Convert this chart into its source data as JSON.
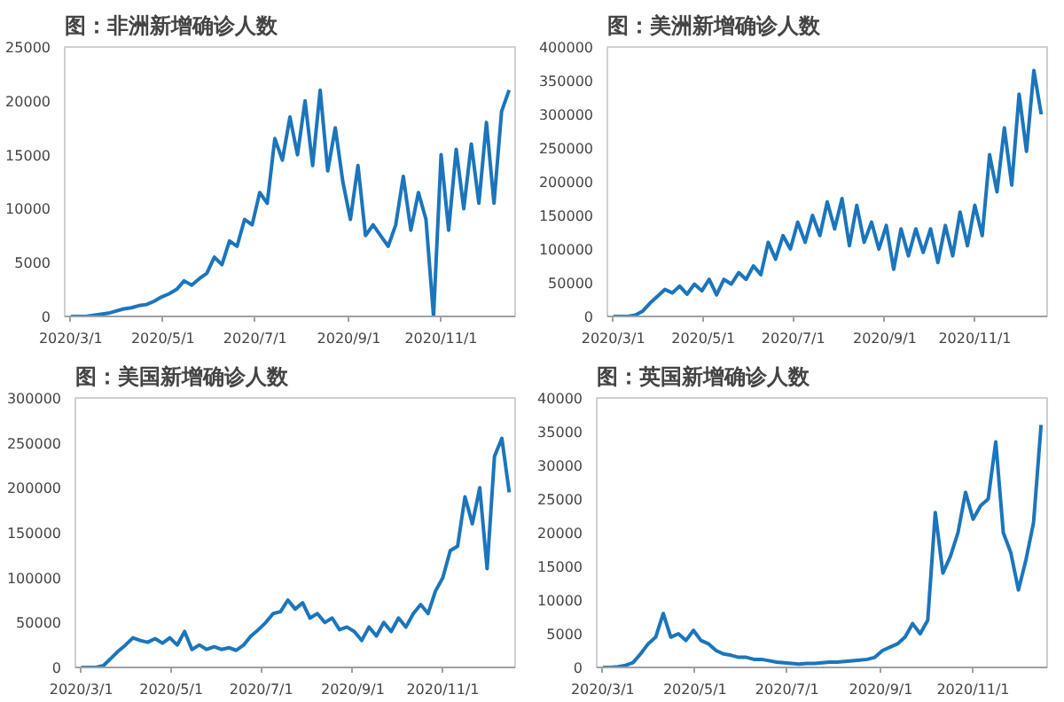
{
  "chart_data": [
    {
      "type": "line",
      "title": "图：非洲新增确诊人数",
      "grid": false,
      "xlim": [
        "2020-02-26",
        "2020-12-20"
      ],
      "xticks": [
        {
          "value": "2020-03-01",
          "label": "2020/3/1"
        },
        {
          "value": "2020-05-01",
          "label": "2020/5/1"
        },
        {
          "value": "2020-07-01",
          "label": "2020/7/1"
        },
        {
          "value": "2020-09-01",
          "label": "2020/9/1"
        },
        {
          "value": "2020-11-01",
          "label": "2020/11/1"
        }
      ],
      "ylim": [
        0,
        25000
      ],
      "yticks": [
        0,
        5000,
        10000,
        15000,
        20000,
        25000
      ],
      "x": [
        "2020-03-01",
        "2020-03-06",
        "2020-03-11",
        "2020-03-16",
        "2020-03-21",
        "2020-03-26",
        "2020-03-31",
        "2020-04-05",
        "2020-04-10",
        "2020-04-15",
        "2020-04-20",
        "2020-04-25",
        "2020-04-30",
        "2020-05-05",
        "2020-05-10",
        "2020-05-15",
        "2020-05-20",
        "2020-05-25",
        "2020-05-30",
        "2020-06-04",
        "2020-06-09",
        "2020-06-14",
        "2020-06-19",
        "2020-06-24",
        "2020-06-29",
        "2020-07-04",
        "2020-07-09",
        "2020-07-14",
        "2020-07-19",
        "2020-07-24",
        "2020-07-29",
        "2020-08-03",
        "2020-08-08",
        "2020-08-13",
        "2020-08-18",
        "2020-08-23",
        "2020-08-28",
        "2020-09-02",
        "2020-09-07",
        "2020-09-12",
        "2020-09-17",
        "2020-09-22",
        "2020-09-27",
        "2020-10-02",
        "2020-10-07",
        "2020-10-12",
        "2020-10-17",
        "2020-10-22",
        "2020-10-27",
        "2020-11-01",
        "2020-11-06",
        "2020-11-11",
        "2020-11-16",
        "2020-11-21",
        "2020-11-26",
        "2020-12-01",
        "2020-12-06",
        "2020-12-11",
        "2020-12-16"
      ],
      "series": [
        {
          "color": "#1b75bc",
          "values": [
            0,
            0,
            0,
            100,
            200,
            300,
            500,
            700,
            800,
            1000,
            1100,
            1400,
            1800,
            2100,
            2500,
            3300,
            2900,
            3500,
            4000,
            5500,
            4800,
            7000,
            6500,
            9000,
            8500,
            11500,
            10500,
            16500,
            14500,
            18500,
            15000,
            20000,
            14000,
            21000,
            13500,
            17500,
            12500,
            9000,
            14000,
            7500,
            8500,
            7500,
            6500,
            8500,
            13000,
            8000,
            11500,
            9000,
            0,
            15000,
            8000,
            15500,
            10000,
            16000,
            10500,
            18000,
            10500,
            19000,
            21000
          ]
        }
      ]
    },
    {
      "type": "line",
      "title": "图：美洲新增确诊人数",
      "grid": false,
      "xlim": [
        "2020-02-26",
        "2020-12-20"
      ],
      "xticks": [
        {
          "value": "2020-03-01",
          "label": "2020/3/1"
        },
        {
          "value": "2020-05-01",
          "label": "2020/5/1"
        },
        {
          "value": "2020-07-01",
          "label": "2020/7/1"
        },
        {
          "value": "2020-09-01",
          "label": "2020/9/1"
        },
        {
          "value": "2020-11-01",
          "label": "2020/11/1"
        }
      ],
      "ylim": [
        0,
        400000
      ],
      "yticks": [
        0,
        50000,
        100000,
        150000,
        200000,
        250000,
        300000,
        350000,
        400000
      ],
      "x": [
        "2020-03-01",
        "2020-03-06",
        "2020-03-11",
        "2020-03-16",
        "2020-03-21",
        "2020-03-26",
        "2020-03-31",
        "2020-04-05",
        "2020-04-10",
        "2020-04-15",
        "2020-04-20",
        "2020-04-25",
        "2020-04-30",
        "2020-05-05",
        "2020-05-10",
        "2020-05-15",
        "2020-05-20",
        "2020-05-25",
        "2020-05-30",
        "2020-06-04",
        "2020-06-09",
        "2020-06-14",
        "2020-06-19",
        "2020-06-24",
        "2020-06-29",
        "2020-07-04",
        "2020-07-09",
        "2020-07-14",
        "2020-07-19",
        "2020-07-24",
        "2020-07-29",
        "2020-08-03",
        "2020-08-08",
        "2020-08-13",
        "2020-08-18",
        "2020-08-23",
        "2020-08-28",
        "2020-09-02",
        "2020-09-07",
        "2020-09-12",
        "2020-09-17",
        "2020-09-22",
        "2020-09-27",
        "2020-10-02",
        "2020-10-07",
        "2020-10-12",
        "2020-10-17",
        "2020-10-22",
        "2020-10-27",
        "2020-11-01",
        "2020-11-06",
        "2020-11-11",
        "2020-11-16",
        "2020-11-21",
        "2020-11-26",
        "2020-12-01",
        "2020-12-06",
        "2020-12-11",
        "2020-12-16"
      ],
      "series": [
        {
          "color": "#1b75bc",
          "values": [
            0,
            0,
            0,
            2000,
            8000,
            20000,
            30000,
            40000,
            35000,
            45000,
            33000,
            48000,
            38000,
            55000,
            32000,
            55000,
            48000,
            65000,
            55000,
            75000,
            62000,
            110000,
            85000,
            120000,
            100000,
            140000,
            110000,
            150000,
            120000,
            170000,
            130000,
            175000,
            105000,
            165000,
            110000,
            140000,
            100000,
            135000,
            70000,
            130000,
            90000,
            130000,
            95000,
            130000,
            80000,
            135000,
            90000,
            155000,
            105000,
            165000,
            120000,
            240000,
            185000,
            280000,
            195000,
            330000,
            245000,
            365000,
            300000
          ]
        }
      ]
    },
    {
      "type": "line",
      "title": "图：美国新增确诊人数",
      "grid": false,
      "xlim": [
        "2020-02-26",
        "2020-12-20"
      ],
      "xticks": [
        {
          "value": "2020-03-01",
          "label": "2020/3/1"
        },
        {
          "value": "2020-05-01",
          "label": "2020/5/1"
        },
        {
          "value": "2020-07-01",
          "label": "2020/7/1"
        },
        {
          "value": "2020-09-01",
          "label": "2020/9/1"
        },
        {
          "value": "2020-11-01",
          "label": "2020/11/1"
        }
      ],
      "ylim": [
        0,
        300000
      ],
      "yticks": [
        0,
        50000,
        100000,
        150000,
        200000,
        250000,
        300000
      ],
      "x": [
        "2020-03-01",
        "2020-03-06",
        "2020-03-11",
        "2020-03-16",
        "2020-03-21",
        "2020-03-26",
        "2020-03-31",
        "2020-04-05",
        "2020-04-10",
        "2020-04-15",
        "2020-04-20",
        "2020-04-25",
        "2020-04-30",
        "2020-05-05",
        "2020-05-10",
        "2020-05-15",
        "2020-05-20",
        "2020-05-25",
        "2020-05-30",
        "2020-06-04",
        "2020-06-09",
        "2020-06-14",
        "2020-06-19",
        "2020-06-24",
        "2020-06-29",
        "2020-07-04",
        "2020-07-09",
        "2020-07-14",
        "2020-07-19",
        "2020-07-24",
        "2020-07-29",
        "2020-08-03",
        "2020-08-08",
        "2020-08-13",
        "2020-08-18",
        "2020-08-23",
        "2020-08-28",
        "2020-09-02",
        "2020-09-07",
        "2020-09-12",
        "2020-09-17",
        "2020-09-22",
        "2020-09-27",
        "2020-10-02",
        "2020-10-07",
        "2020-10-12",
        "2020-10-17",
        "2020-10-22",
        "2020-10-27",
        "2020-11-01",
        "2020-11-06",
        "2020-11-11",
        "2020-11-16",
        "2020-11-21",
        "2020-11-26",
        "2020-12-01",
        "2020-12-06",
        "2020-12-11",
        "2020-12-16"
      ],
      "series": [
        {
          "color": "#1b75bc",
          "values": [
            0,
            0,
            0,
            2000,
            10000,
            18000,
            25000,
            33000,
            30000,
            28000,
            32000,
            27000,
            33000,
            25000,
            40000,
            20000,
            25000,
            20000,
            23000,
            20000,
            22000,
            19000,
            25000,
            35000,
            42000,
            50000,
            60000,
            62000,
            75000,
            65000,
            72000,
            55000,
            60000,
            50000,
            55000,
            42000,
            45000,
            40000,
            30000,
            45000,
            35000,
            50000,
            40000,
            55000,
            45000,
            60000,
            70000,
            60000,
            85000,
            100000,
            130000,
            135000,
            190000,
            160000,
            200000,
            110000,
            235000,
            255000,
            195000
          ]
        }
      ]
    },
    {
      "type": "line",
      "title": "图：英国新增确诊人数",
      "grid": false,
      "xlim": [
        "2020-02-26",
        "2020-12-20"
      ],
      "xticks": [
        {
          "value": "2020-03-01",
          "label": "2020/3/1"
        },
        {
          "value": "2020-05-01",
          "label": "2020/5/1"
        },
        {
          "value": "2020-07-01",
          "label": "2020/7/1"
        },
        {
          "value": "2020-09-01",
          "label": "2020/9/1"
        },
        {
          "value": "2020-11-01",
          "label": "2020/11/1"
        }
      ],
      "ylim": [
        0,
        40000
      ],
      "yticks": [
        0,
        5000,
        10000,
        15000,
        20000,
        25000,
        30000,
        35000,
        40000
      ],
      "x": [
        "2020-03-01",
        "2020-03-06",
        "2020-03-11",
        "2020-03-16",
        "2020-03-21",
        "2020-03-26",
        "2020-03-31",
        "2020-04-05",
        "2020-04-10",
        "2020-04-15",
        "2020-04-20",
        "2020-04-25",
        "2020-04-30",
        "2020-05-05",
        "2020-05-10",
        "2020-05-15",
        "2020-05-20",
        "2020-05-25",
        "2020-05-30",
        "2020-06-04",
        "2020-06-09",
        "2020-06-14",
        "2020-06-19",
        "2020-06-24",
        "2020-06-29",
        "2020-07-04",
        "2020-07-09",
        "2020-07-14",
        "2020-07-19",
        "2020-07-24",
        "2020-07-29",
        "2020-08-03",
        "2020-08-08",
        "2020-08-13",
        "2020-08-18",
        "2020-08-23",
        "2020-08-28",
        "2020-09-02",
        "2020-09-07",
        "2020-09-12",
        "2020-09-17",
        "2020-09-22",
        "2020-09-27",
        "2020-10-02",
        "2020-10-07",
        "2020-10-12",
        "2020-10-17",
        "2020-10-22",
        "2020-10-27",
        "2020-11-01",
        "2020-11-06",
        "2020-11-11",
        "2020-11-16",
        "2020-11-21",
        "2020-11-26",
        "2020-12-01",
        "2020-12-06",
        "2020-12-11",
        "2020-12-16"
      ],
      "series": [
        {
          "color": "#1b75bc",
          "values": [
            0,
            0,
            100,
            300,
            700,
            2000,
            3500,
            4500,
            8000,
            4500,
            5000,
            4000,
            5500,
            4000,
            3500,
            2500,
            2000,
            1800,
            1500,
            1500,
            1200,
            1200,
            1000,
            800,
            700,
            600,
            500,
            600,
            600,
            700,
            800,
            800,
            900,
            1000,
            1100,
            1200,
            1500,
            2500,
            3000,
            3500,
            4500,
            6500,
            5000,
            7000,
            23000,
            14000,
            16500,
            20000,
            26000,
            22000,
            24000,
            25000,
            33500,
            20000,
            17000,
            11500,
            16000,
            21500,
            36000
          ]
        }
      ]
    }
  ]
}
